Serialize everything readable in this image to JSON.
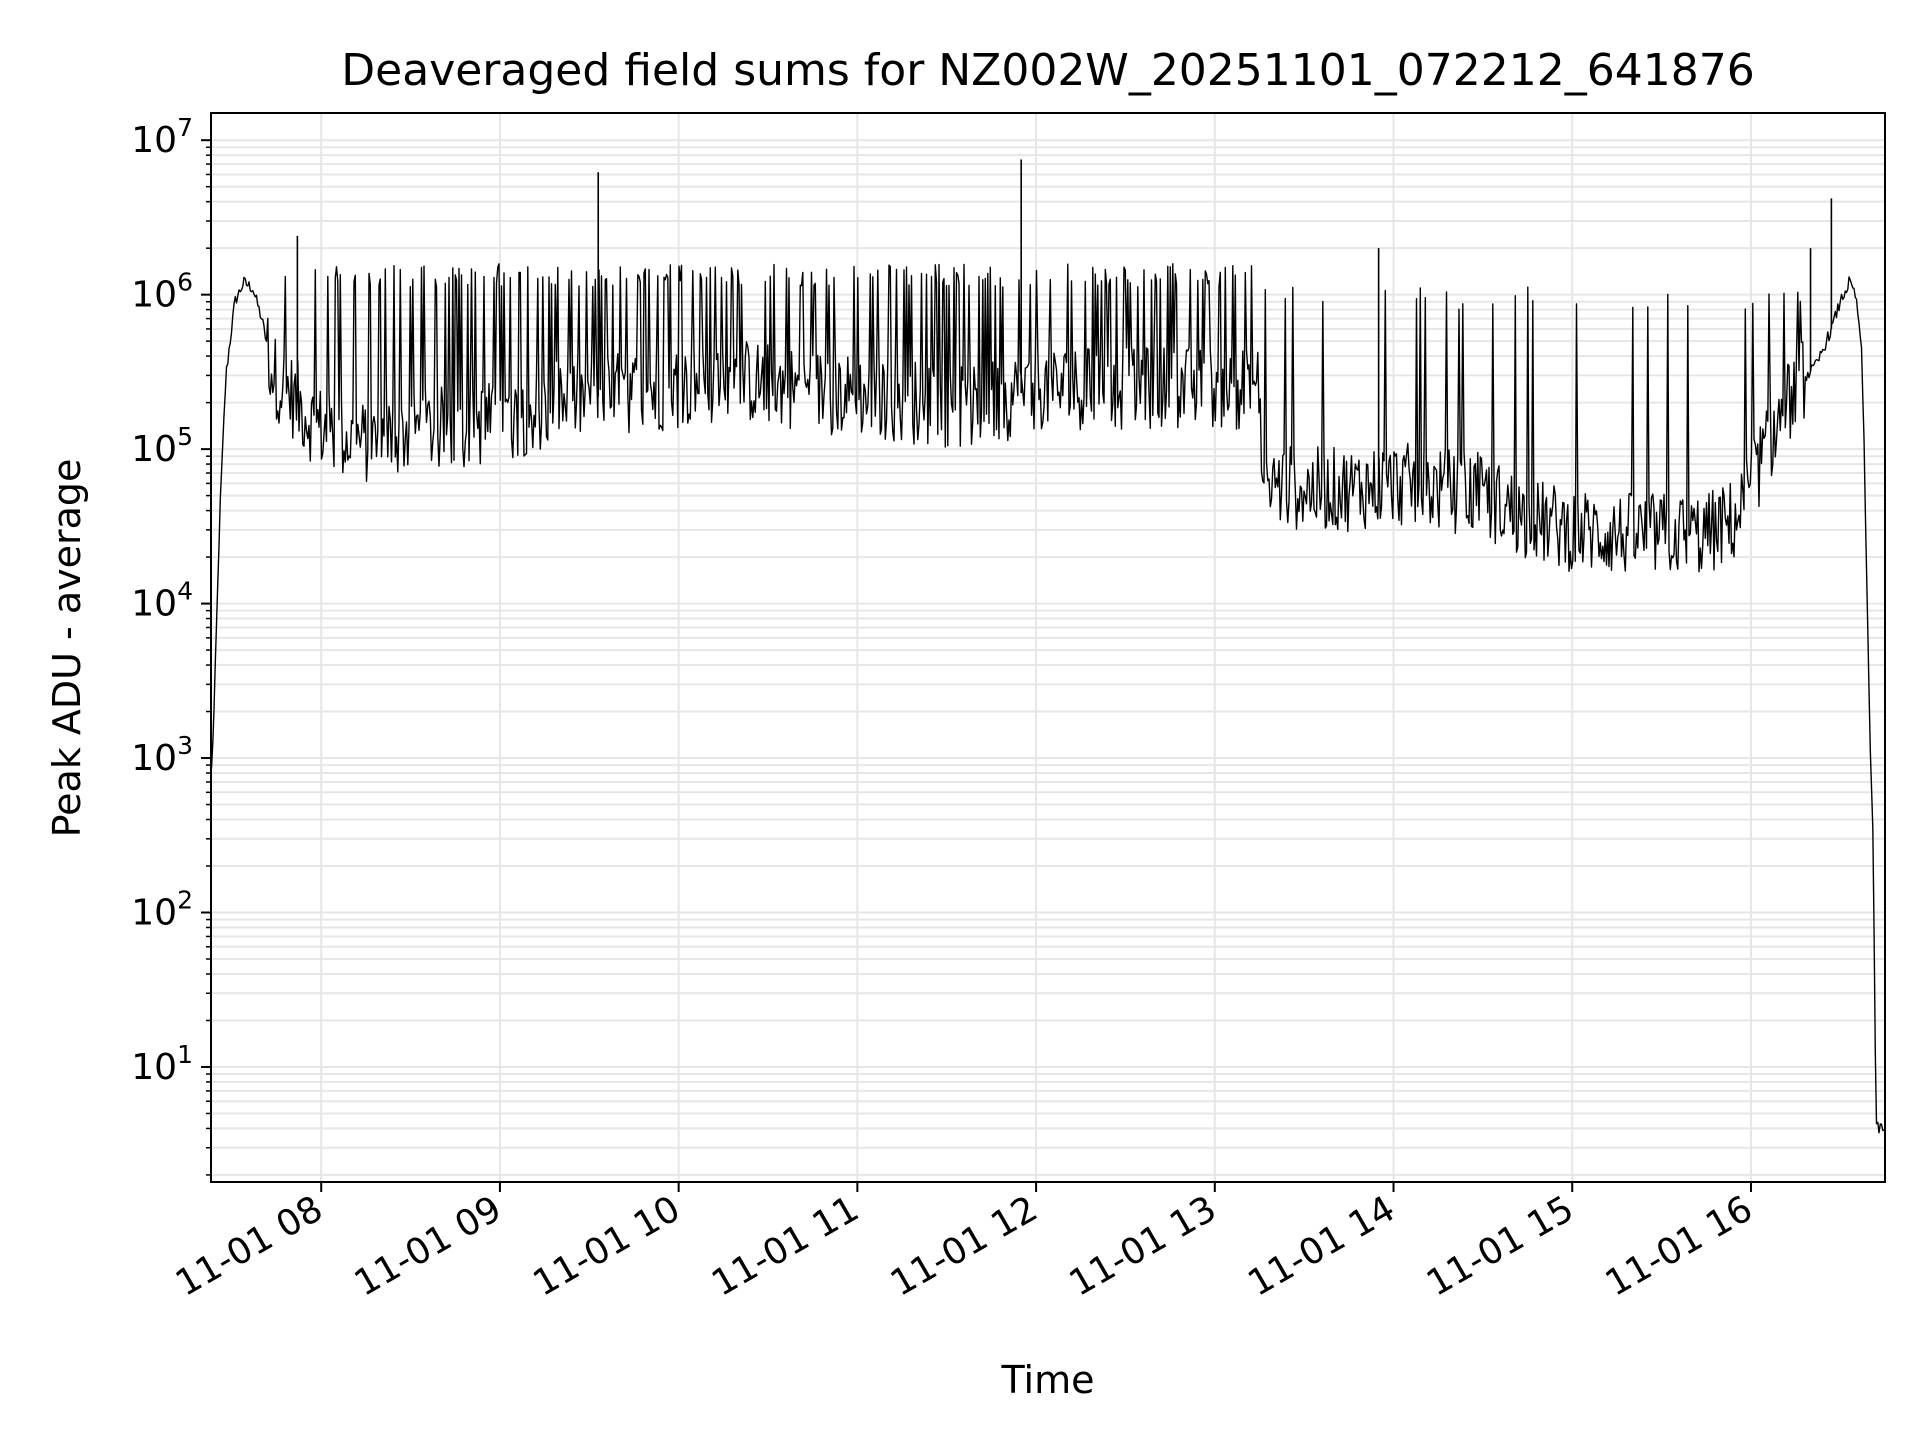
{
  "chart_data": {
    "type": "line",
    "title": "Deaveraged field sums for NZ002W_20251101_072212_641876",
    "xlabel": "Time",
    "ylabel": "Peak ADU - average",
    "y_scale": "log",
    "ylim": [
      1.8,
      15000000
    ],
    "xlim": [
      "2025-11-01 07:23",
      "2025-11-01 16:45"
    ],
    "grid": true,
    "x_ticks": [
      {
        "t": "2025-11-01 08:00",
        "label": "11-01 08"
      },
      {
        "t": "2025-11-01 09:00",
        "label": "11-01 09"
      },
      {
        "t": "2025-11-01 10:00",
        "label": "11-01 10"
      },
      {
        "t": "2025-11-01 11:00",
        "label": "11-01 11"
      },
      {
        "t": "2025-11-01 12:00",
        "label": "11-01 12"
      },
      {
        "t": "2025-11-01 13:00",
        "label": "11-01 13"
      },
      {
        "t": "2025-11-01 14:00",
        "label": "11-01 14"
      },
      {
        "t": "2025-11-01 15:00",
        "label": "11-01 15"
      },
      {
        "t": "2025-11-01 16:00",
        "label": "11-01 16"
      }
    ],
    "y_ticks": [
      {
        "value": 10,
        "base": "10",
        "exp": "1"
      },
      {
        "value": 100,
        "base": "10",
        "exp": "2"
      },
      {
        "value": 1000,
        "base": "10",
        "exp": "3"
      },
      {
        "value": 10000,
        "base": "10",
        "exp": "4"
      },
      {
        "value": 100000,
        "base": "10",
        "exp": "5"
      },
      {
        "value": 1000000,
        "base": "10",
        "exp": "6"
      },
      {
        "value": 10000000,
        "base": "10",
        "exp": "7"
      }
    ],
    "series": [
      {
        "color": "#000000",
        "x": [
          "2025-11-01 07:23",
          "2025-11-01 07:24",
          "2025-11-01 07:26",
          "2025-11-01 07:28",
          "2025-11-01 07:31",
          "2025-11-01 07:34",
          "2025-11-01 07:37",
          "2025-11-01 07:40",
          "2025-11-01 07:44",
          "2025-11-01 07:48",
          "2025-11-01 07:52",
          "2025-11-01 07:57",
          "2025-11-01 08:05",
          "2025-11-01 08:15",
          "2025-11-01 08:30",
          "2025-11-01 08:45",
          "2025-11-01 09:00",
          "2025-11-01 09:20",
          "2025-11-01 09:40",
          "2025-11-01 10:00",
          "2025-11-01 10:20",
          "2025-11-01 10:40",
          "2025-11-01 11:00",
          "2025-11-01 11:20",
          "2025-11-01 11:40",
          "2025-11-01 12:00",
          "2025-11-01 12:20",
          "2025-11-01 12:40",
          "2025-11-01 13:00",
          "2025-11-01 13:15",
          "2025-11-01 13:16",
          "2025-11-01 13:30",
          "2025-11-01 13:45",
          "2025-11-01 14:00",
          "2025-11-01 14:15",
          "2025-11-01 14:30",
          "2025-11-01 14:45",
          "2025-11-01 15:00",
          "2025-11-01 15:15",
          "2025-11-01 15:30",
          "2025-11-01 15:45",
          "2025-11-01 15:55",
          "2025-11-01 16:05",
          "2025-11-01 16:15",
          "2025-11-01 16:22",
          "2025-11-01 16:27",
          "2025-11-01 16:30",
          "2025-11-01 16:33",
          "2025-11-01 16:35",
          "2025-11-01 16:37",
          "2025-11-01 16:38",
          "2025-11-01 16:39",
          "2025-11-01 16:40",
          "2025-11-01 16:41",
          "2025-11-01 16:42",
          "2025-11-01 16:45"
        ],
        "y": [
          700,
          2000,
          40000,
          300000,
          900000,
          1200000,
          1100000,
          700000,
          300000,
          250000,
          200000,
          150000,
          120000,
          110000,
          130000,
          140000,
          150000,
          200000,
          230000,
          250000,
          280000,
          250000,
          220000,
          200000,
          180000,
          250000,
          250000,
          250000,
          250000,
          250000,
          60000,
          55000,
          55000,
          60000,
          55000,
          50000,
          35000,
          30000,
          28000,
          28000,
          28000,
          35000,
          100000,
          250000,
          350000,
          600000,
          900000,
          1200000,
          1000000,
          500000,
          100000,
          10000,
          1300,
          300,
          4,
          4
        ]
      }
    ],
    "spikes": [
      {
        "t": "2025-11-01 07:52",
        "value": 2400000
      },
      {
        "t": "2025-11-01 09:33",
        "value": 6200000
      },
      {
        "t": "2025-11-01 11:55",
        "value": 7500000
      },
      {
        "t": "2025-11-01 13:55",
        "value": 2000000
      },
      {
        "t": "2025-11-01 16:20",
        "value": 2000000
      },
      {
        "t": "2025-11-01 16:27",
        "value": 4200000
      }
    ]
  }
}
